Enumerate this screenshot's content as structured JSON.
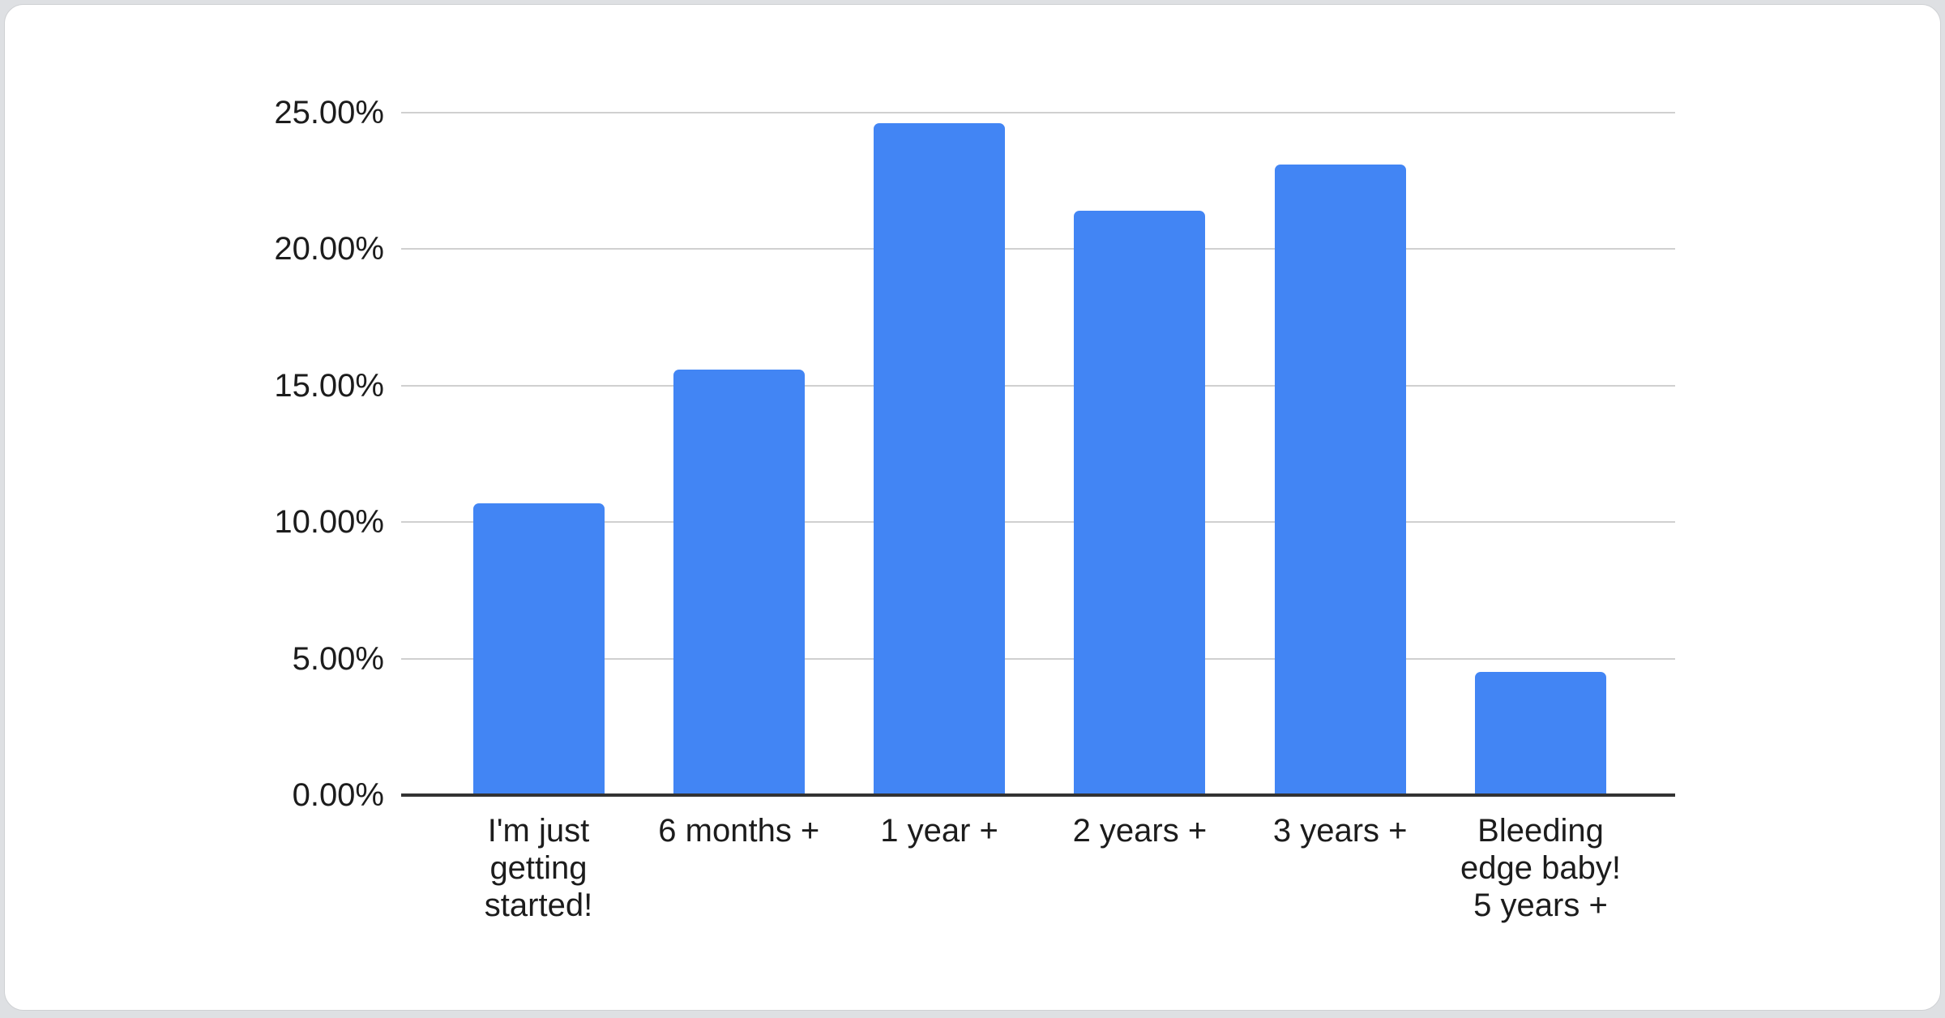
{
  "page": {
    "background_color": "#dee0e3",
    "card_color": "#ffffff",
    "card_border_color": "#cfd1d4"
  },
  "chart_data": {
    "type": "bar",
    "title": "",
    "categories": [
      "I'm just getting started!",
      "6 months +",
      "1 year +",
      "2 years +",
      "3 years +",
      "Bleeding edge baby! 5 years +"
    ],
    "category_display_lines": [
      [
        "I'm just",
        "getting",
        "started!"
      ],
      [
        "6 months +"
      ],
      [
        "1 year +"
      ],
      [
        "2 years +"
      ],
      [
        "3 years +"
      ],
      [
        "Bleeding",
        "edge baby!",
        "5 years +"
      ]
    ],
    "values": [
      10.7,
      15.6,
      24.6,
      21.4,
      23.1,
      4.5
    ],
    "value_unit": "%",
    "y_tick_labels": [
      "25.00%",
      "20.00%",
      "15.00%",
      "10.00%",
      "5.00%",
      "0.00%"
    ],
    "ylim": [
      0,
      25
    ],
    "xlabel": "",
    "ylabel": "",
    "grid": "horizontal",
    "legend": "none",
    "bar_color": "#4285f4",
    "gridline_color": "#d0d0d0",
    "axis_line_color": "#333333",
    "label_color": "#1c1c1c"
  }
}
